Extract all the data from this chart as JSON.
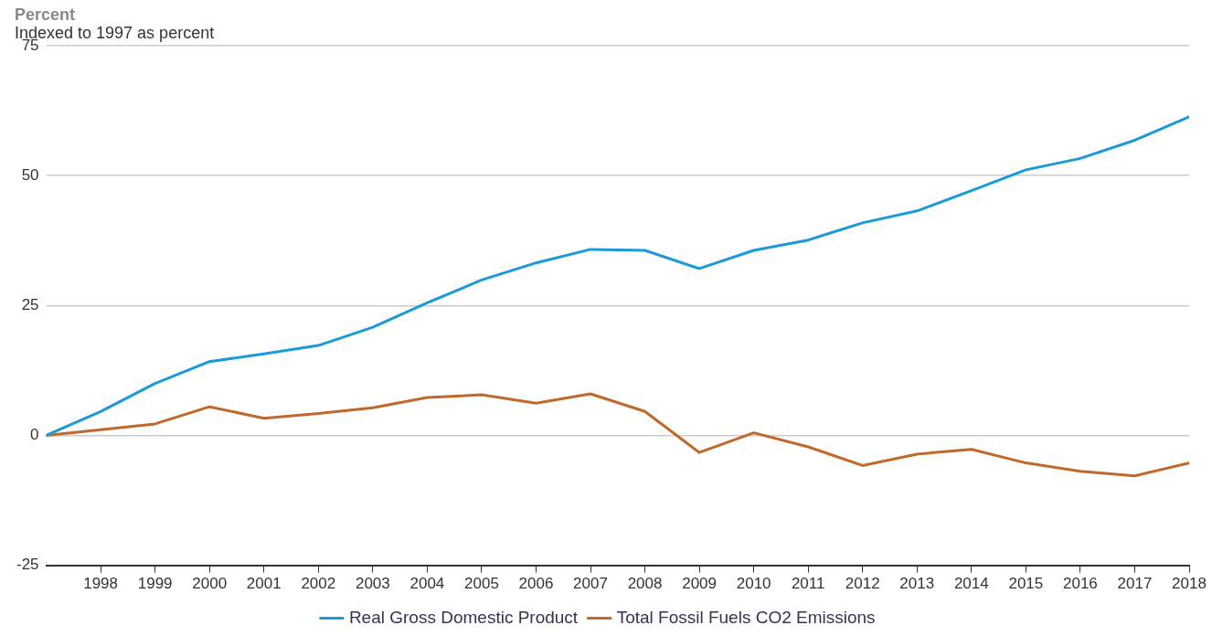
{
  "chart_data": {
    "type": "line",
    "ylabel": "Percent",
    "subtitle": "Indexed to 1997 as percent",
    "x": [
      1997,
      1998,
      1999,
      2000,
      2001,
      2002,
      2003,
      2004,
      2005,
      2006,
      2007,
      2008,
      2009,
      2010,
      2011,
      2012,
      2013,
      2014,
      2015,
      2016,
      2017,
      2018
    ],
    "series": [
      {
        "name": "Real Gross Domestic Product",
        "color": "#1b9ad8",
        "values": [
          0,
          4.6,
          10,
          14.2,
          15.7,
          17.3,
          20.8,
          25.5,
          29.9,
          33.2,
          35.8,
          35.6,
          32.1,
          35.6,
          37.6,
          40.9,
          43.2,
          47.1,
          51.1,
          53.3,
          56.8,
          61.3
        ]
      },
      {
        "name": "Total Fossil Fuels CO2 Emissions",
        "color": "#c0692a",
        "values": [
          0,
          1.1,
          2.2,
          5.5,
          3.3,
          4.2,
          5.3,
          7.3,
          7.8,
          6.2,
          8,
          4.6,
          -3.3,
          0.5,
          -2.2,
          -5.8,
          -3.6,
          -2.7,
          -5.3,
          -6.9,
          -7.8,
          -5.3
        ]
      }
    ],
    "xlim": [
      1997,
      2018
    ],
    "xticks": [
      1998,
      1999,
      2000,
      2001,
      2002,
      2003,
      2004,
      2005,
      2006,
      2007,
      2008,
      2009,
      2010,
      2011,
      2012,
      2013,
      2014,
      2015,
      2016,
      2017,
      2018
    ],
    "ylim": [
      -25,
      75
    ],
    "yticks": [
      -25,
      0,
      25,
      50,
      75
    ],
    "grid": "y",
    "legend": "bottom",
    "marker": "none",
    "line_style": "solid"
  }
}
